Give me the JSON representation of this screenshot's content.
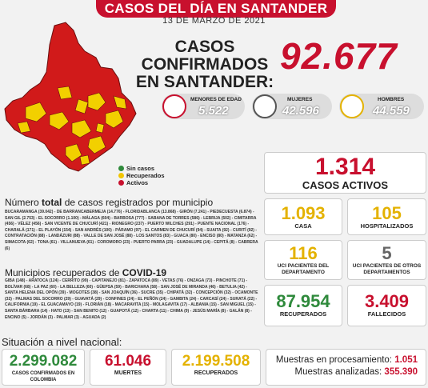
{
  "header": {
    "title": "CASOS DEL DÍA EN SANTANDER",
    "date": "13 DE MARZO DE 2021"
  },
  "confirmed": {
    "label_line1": "CASOS CONFIRMADOS",
    "label_line2": "EN SANTANDER:",
    "value": "92.677"
  },
  "demographics": [
    {
      "label": "MENORES DE EDAD",
      "value": "5.522"
    },
    {
      "label": "MUJERES",
      "value": "42.596"
    },
    {
      "label": "HOMBRES",
      "value": "44.559"
    }
  ],
  "legend": [
    {
      "label": "Sin casos",
      "color": "#2f8a3c"
    },
    {
      "label": "Recuperados",
      "color": "#f2c500"
    },
    {
      "label": "Activos",
      "color": "#c8102e"
    }
  ],
  "stats": {
    "active": {
      "value": "1.314",
      "label": "CASOS ACTIVOS"
    },
    "home": {
      "value": "1.093",
      "label": "CASA"
    },
    "hospital": {
      "value": "105",
      "label": "HOSPITALIZADOS"
    },
    "uci_dep": {
      "value": "116",
      "label": "UCI PACIENTES DEL DEPARTAMENTO"
    },
    "uci_other": {
      "value": "5",
      "label": "UCI PACIENTES DE OTROS DEPARTAMENTOS"
    },
    "recovered": {
      "value": "87.954",
      "label": "RECUPERADOS"
    },
    "deaths": {
      "value": "3.409",
      "label": "FALLECIDOS"
    }
  },
  "municipalities": {
    "total_title_pre": "Número ",
    "total_title_bold": "total",
    "total_title_post": " de casos registrados por municipio",
    "total_list": "BUCARAMANGA (39.042) - DE BARRANCABERMEJA (14.776) - FLORIDABLANCA (13.868) - GIRÓN (7.241) - PIEDECUESTA (6.874) - SAN GIL (2.753) - EL SOCORRO (1.100) - MÁLAGA (604) - BARBOSA (777) - SABANA DE TORRES (586) - LEBRIJA (502) - CIMITARRA (456) - VÉLEZ (456) - SAN VICENTE DE CHUCURÍ (421) - RIONEGRO (237) - PUERTO WILCHES (291) - PUENTE NACIONAL (176) - CHARALÁ (171) - EL PLAYÓN (154) - SAN ANDRÉS (100) - PÁRAMO (97) - EL CARMEN DE CHUCURÍ (94) - SUAITA (92) - CURITÍ (92) - CONTRATACIÓN (88) - LANDÁZURI (88) - VALLE DE SAN JOSÉ (88) - LOS SANTOS (83) - GUACA (80) - ENCISO (80) - MATANZA (62) - SIMACOTA (62) - TONA (61) - VILLANUEVA (61) - COROMORO (23) - PUERTO PARRA (23) - GUADALUPE (14) - CEPITÁ (8) - CABRERA (6)",
    "rec_title_pre": "Municipios recuperados de ",
    "rec_title_bold": "COVID-19",
    "rec_list": "GIBA (148) - ARATOCA (124) - CERRITO (99) - CAPITANEJO (81) - ZAPATOCA (89) - VETAS (76) - ONZAGA (73) - PINCHOTE (71) - BOLÍVAR (68) - LA PAZ (60) - LA BELLEZA (60) - GÜEPSA (59) - BARICHARA (58) - SAN JOSÉ DE MIRANDA (46) - BETULIA (42) - SANTA HELENA DEL OPÓN (39) - MOGOTES (38) - SAN JOAQUÍN (36) - SUCRE (35) - CHIPATÁ (32) - CONCEPCIÓN (32) - OCAMONTE (32) - PALMAS DEL SOCORRO (29) - GUAVATÁ (29) - CONFINES (24) - EL PEÑÓN (24) - GAMBITA (24) - CARCASÍ (24) - SURATÁ (22) - CALIFORNIA (19) - EL GUACAMAYO (19) - FLORIÁN (18) - MACARAVITA (15) - MOLAGAVITA (17) - ALBANIA (15) - SAN MIGUEL (15) - SANTA BÁRBARA (14) - HATO (13) - SAN BENITO (12) - GUAPOTÁ (12) - CHARTA (11) - CHIMA (9) - JESÚS MARÍA (8) - GALÁN (8) - ENCINO (5) - JORDÁN (3) - PALMAR (3) - AGUADA (2)"
  },
  "national": {
    "title": "Situación a nivel nacional:",
    "confirmed": {
      "value": "2.299.082",
      "label": "CASOS CONFIRMADOS EN COLOMBIA"
    },
    "deaths": {
      "value": "61.046",
      "label": "MUERTES"
    },
    "recovered": {
      "value": "2.199.508",
      "label": "RECUPERADOS"
    }
  },
  "samples": {
    "processing_label": "Muestras en procesamiento:",
    "processing_value": "1.051",
    "analyzed_label": "Muestras analizadas:",
    "analyzed_value": "355.390"
  }
}
